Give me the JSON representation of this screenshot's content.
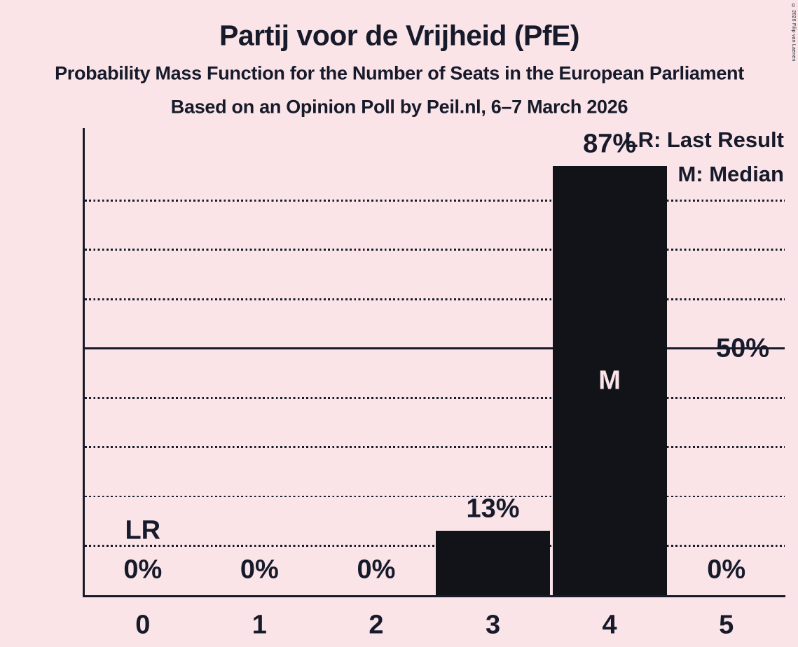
{
  "page": {
    "background_color": "#fae4e7",
    "text_color": "#161a2b",
    "copyright": "© 2026 Filip van Laenen"
  },
  "header": {
    "title": "Partij voor de Vrijheid (PfE)",
    "subtitle": "Probability Mass Function for the Number of Seats in the European Parliament",
    "subsubtitle": "Based on an Opinion Poll by Peil.nl, 6–7 March 2026"
  },
  "legend": {
    "lr": "LR: Last Result",
    "m": "M: Median"
  },
  "chart_data": {
    "type": "bar",
    "title": "Partij voor de Vrijheid (PfE)",
    "categories": [
      "0",
      "1",
      "2",
      "3",
      "4",
      "5"
    ],
    "values": [
      0,
      0,
      0,
      13,
      87,
      0
    ],
    "value_labels": [
      "0%",
      "0%",
      "0%",
      "13%",
      "87%",
      "0%"
    ],
    "xlabel": "",
    "ylabel": "",
    "y_axis": {
      "tick_label": "50%",
      "tick_value": 50,
      "ylim": [
        0,
        95
      ],
      "solid_gridline_pct": 50,
      "dotted_gridlines_pct": [
        10,
        20,
        30,
        40,
        60,
        70,
        80
      ]
    },
    "grid": "horizontal",
    "legend_position": "top-right",
    "legend_entries": [
      "LR: Last Result",
      "M: Median"
    ],
    "annotations": [
      {
        "label": "LR",
        "category_index": 0,
        "position": "above_axis"
      },
      {
        "label": "M",
        "category_index": 4,
        "position": "inside_bar"
      }
    ],
    "bar_color": "#121318",
    "inside_bar_label_color": "#fae4e7"
  }
}
